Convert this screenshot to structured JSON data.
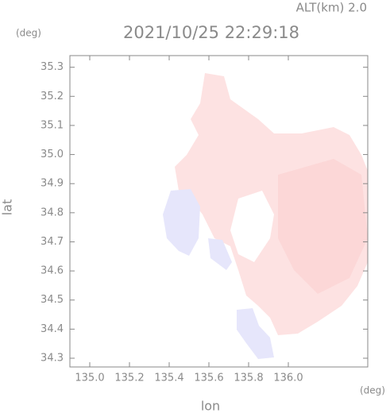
{
  "chart_data": {
    "type": "radar-map",
    "annotation": "ALT(km) 2.0",
    "title": "2021/10/25 22:29:18",
    "y_unit": "(deg)",
    "x_unit": "(deg)",
    "xlabel": "lon",
    "ylabel": "lat",
    "xlim": [
      134.9,
      136.4
    ],
    "ylim": [
      34.27,
      35.34
    ],
    "xticks": [
      {
        "value": 135.0,
        "label": "135.0"
      },
      135.2,
      135.4,
      135.6,
      135.8,
      {
        "value": 136.0,
        "label": "136.0"
      }
    ],
    "yticks": [
      35.3,
      35.2,
      35.1,
      {
        "value": 35.0,
        "label": "35.0"
      },
      34.9,
      34.8,
      34.7,
      34.6,
      34.5,
      34.4,
      34.3
    ]
  }
}
